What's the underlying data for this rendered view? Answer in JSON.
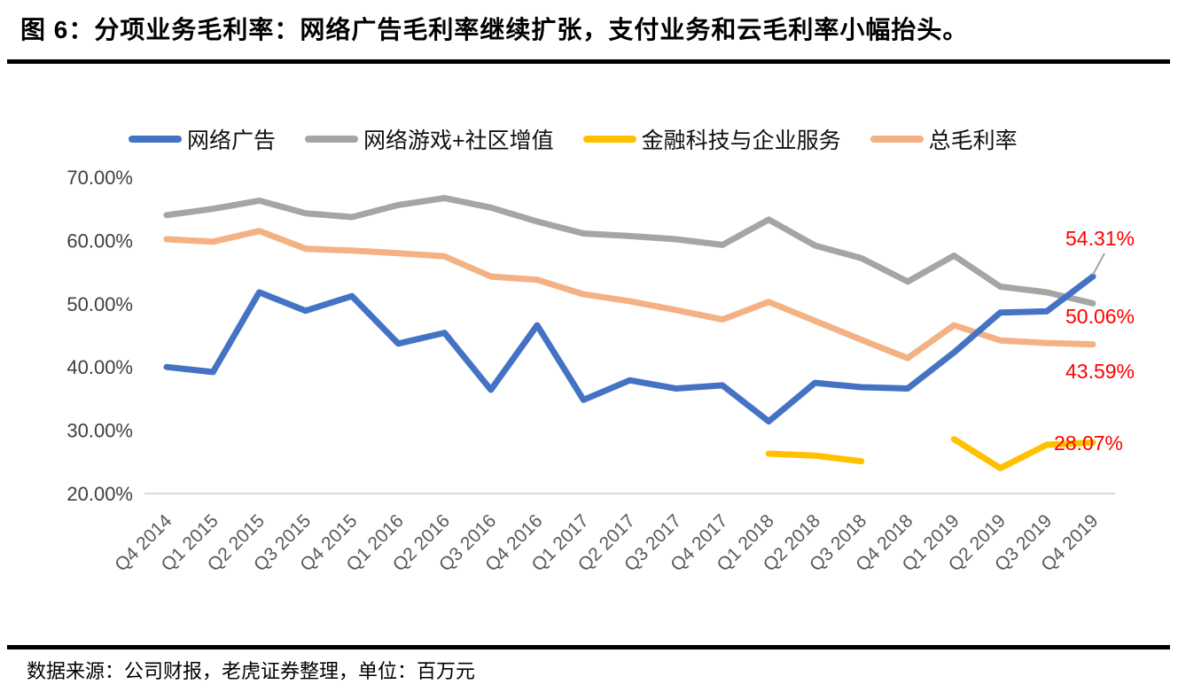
{
  "page": {
    "title": "图 6：分项业务毛利率：网络广告毛利率继续扩张，支付业务和云毛利率小幅抬头。",
    "footer": "数据来源：公司财报，老虎证券整理，单位：百万元"
  },
  "chart_data": {
    "type": "line",
    "title": "图 6：分项业务毛利率：网络广告毛利率继续扩张，支付业务和云毛利率小幅抬头。",
    "xlabel": "",
    "ylabel": "",
    "ylim": [
      20,
      70
    ],
    "y_ticks": [
      "70.00%",
      "60.00%",
      "50.00%",
      "40.00%",
      "30.00%",
      "20.00%"
    ],
    "grid": {
      "y_gridlines_pct": [
        20
      ],
      "gridline_color": "#D9D9D9"
    },
    "legend_position": "top",
    "axis_label_color": "#595959",
    "end_label_color": "#FF0000",
    "categories": [
      "Q4 2014",
      "Q1 2015",
      "Q2 2015",
      "Q3 2015",
      "Q4 2015",
      "Q1 2016",
      "Q2 2016",
      "Q3 2016",
      "Q4 2016",
      "Q1 2017",
      "Q2 2017",
      "Q3 2017",
      "Q4 2017",
      "Q1 2018",
      "Q2 2018",
      "Q3 2018",
      "Q4 2018",
      "Q1 2019",
      "Q2 2019",
      "Q3 2019",
      "Q4 2019"
    ],
    "series": [
      {
        "name": "网络广告",
        "color": "#4472C4",
        "end_label": "54.31%",
        "values": [
          40.0,
          39.2,
          51.8,
          48.9,
          51.2,
          43.7,
          45.4,
          36.4,
          46.6,
          34.8,
          37.9,
          36.6,
          37.1,
          31.4,
          37.5,
          36.8,
          36.6,
          42.3,
          48.6,
          48.8,
          54.31
        ]
      },
      {
        "name": "网络游戏+社区增值",
        "color": "#A5A5A5",
        "end_label": "50.06%",
        "values": [
          64.0,
          65.0,
          66.3,
          64.3,
          63.7,
          65.6,
          66.7,
          65.2,
          63.0,
          61.1,
          60.7,
          60.2,
          59.3,
          63.3,
          59.2,
          57.2,
          53.5,
          57.6,
          52.7,
          51.8,
          50.06
        ]
      },
      {
        "name": "金融科技与企业服务",
        "color": "#FFC000",
        "end_label": "28.07%",
        "values": [
          null,
          null,
          null,
          null,
          null,
          null,
          null,
          null,
          null,
          null,
          null,
          null,
          null,
          26.3,
          26.0,
          25.1,
          null,
          28.6,
          24.0,
          27.7,
          28.07
        ]
      },
      {
        "name": "总毛利率",
        "color": "#F4B183",
        "end_label": "43.59%",
        "values": [
          60.2,
          59.8,
          61.5,
          58.7,
          58.4,
          58.0,
          57.5,
          54.3,
          53.8,
          51.5,
          50.4,
          49.0,
          47.5,
          50.3,
          47.3,
          44.3,
          41.4,
          46.6,
          44.2,
          43.8,
          43.59
        ]
      }
    ]
  }
}
